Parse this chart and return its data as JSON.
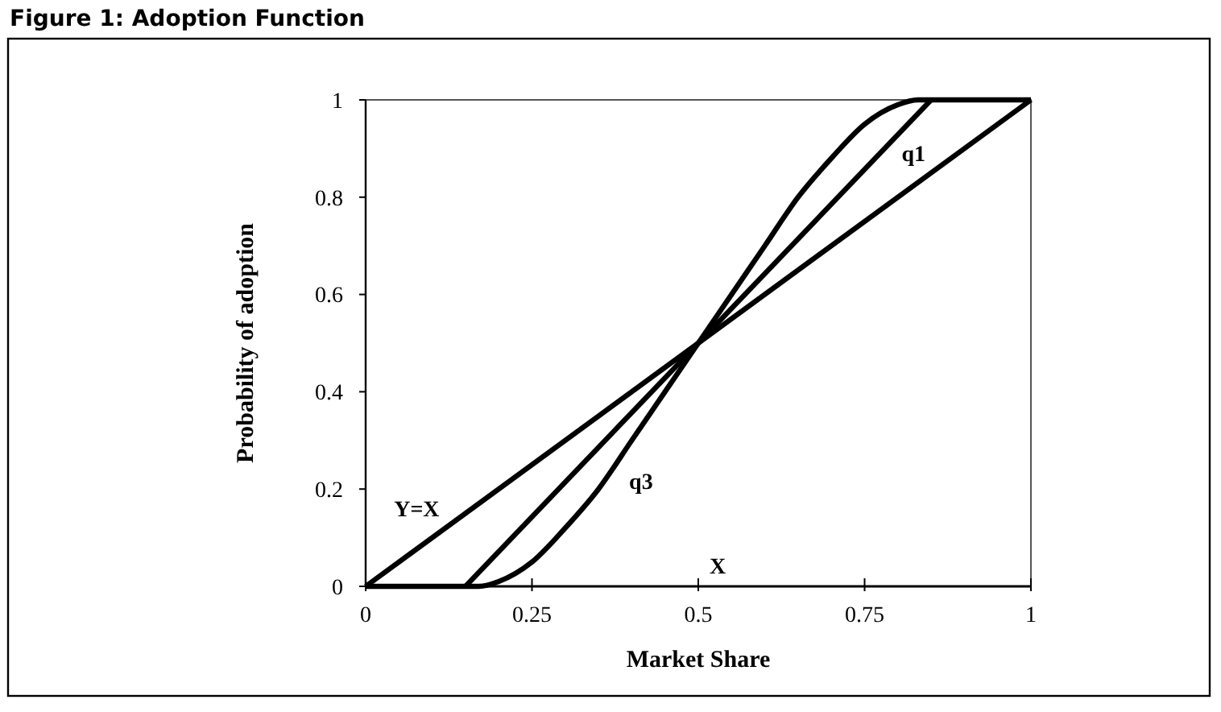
{
  "chart_data": {
    "type": "line",
    "title": "Figure 1: Adoption Function",
    "xlabel": "Market Share",
    "ylabel": "Probability of adoption",
    "series": [
      {
        "name": "Y=X",
        "x": [
          0,
          1
        ],
        "values": [
          0,
          1
        ],
        "color": "#000000"
      },
      {
        "name": "q1",
        "x": [
          0.15,
          0.85
        ],
        "values": [
          0,
          1
        ],
        "color": "#000000"
      },
      {
        "name": "q3",
        "x": [
          0,
          0.17,
          0.2,
          0.25,
          0.3,
          0.35,
          0.4,
          0.45,
          0.5,
          0.55,
          0.6,
          0.65,
          0.7,
          0.75,
          0.8,
          0.83,
          1
        ],
        "values": [
          0,
          0,
          0.01,
          0.05,
          0.12,
          0.2,
          0.3,
          0.4,
          0.5,
          0.6,
          0.7,
          0.8,
          0.88,
          0.95,
          0.99,
          1,
          1
        ],
        "color": "#000000"
      }
    ],
    "annotations": [
      "X"
    ],
    "xlim": [
      0,
      1
    ],
    "ylim": [
      0,
      1
    ],
    "xticks": [
      0,
      0.25,
      0.5,
      0.75,
      1
    ],
    "yticks": [
      0,
      0.2,
      0.4,
      0.6,
      0.8,
      1
    ],
    "grid": false,
    "marker": "none",
    "line_style": "solid"
  }
}
